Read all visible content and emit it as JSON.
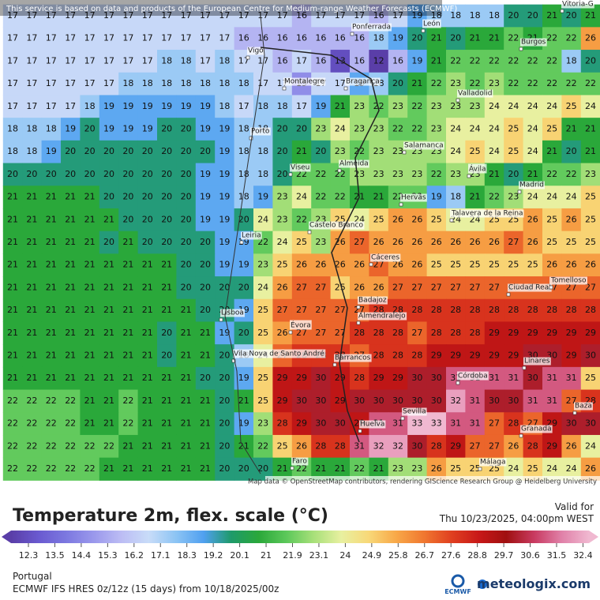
{
  "header": {
    "disclaimer": "This service is based on data and products of the European Centre for Medium-range Weather Forecasts (ECMWF)"
  },
  "map": {
    "rows": [
      [
        17,
        17,
        17,
        17,
        17,
        17,
        17,
        17,
        17,
        17,
        17,
        17,
        17,
        17,
        17,
        16,
        17,
        17,
        17,
        16,
        17,
        19,
        18,
        18,
        18,
        18,
        20,
        20,
        21,
        20,
        21
      ],
      [
        17,
        17,
        17,
        17,
        17,
        17,
        17,
        17,
        17,
        17,
        17,
        17,
        16,
        16,
        16,
        16,
        16,
        16,
        16,
        18,
        19,
        20,
        21,
        20,
        21,
        21,
        22,
        21,
        22,
        22,
        26
      ],
      [
        17,
        17,
        17,
        17,
        17,
        17,
        17,
        17,
        18,
        18,
        17,
        18,
        17,
        17,
        16,
        17,
        16,
        13,
        16,
        12,
        16,
        19,
        21,
        22,
        22,
        22,
        22,
        22,
        22,
        18,
        20
      ],
      [
        17,
        17,
        17,
        17,
        17,
        17,
        18,
        18,
        18,
        18,
        18,
        18,
        18,
        17,
        17,
        15,
        17,
        17,
        19,
        18,
        20,
        21,
        22,
        23,
        22,
        23,
        22,
        22,
        22,
        22,
        22
      ],
      [
        17,
        17,
        17,
        17,
        18,
        19,
        19,
        19,
        19,
        19,
        19,
        18,
        17,
        18,
        18,
        17,
        19,
        21,
        23,
        22,
        23,
        22,
        23,
        23,
        23,
        24,
        24,
        24,
        24,
        25,
        24
      ],
      [
        18,
        18,
        18,
        19,
        20,
        19,
        19,
        19,
        20,
        20,
        19,
        19,
        18,
        18,
        20,
        20,
        23,
        24,
        23,
        23,
        22,
        22,
        23,
        24,
        24,
        24,
        25,
        24,
        25,
        21,
        21
      ],
      [
        18,
        18,
        19,
        20,
        20,
        20,
        20,
        20,
        20,
        20,
        20,
        19,
        18,
        18,
        20,
        21,
        20,
        23,
        22,
        23,
        23,
        23,
        23,
        24,
        25,
        24,
        25,
        24,
        21,
        20,
        21
      ],
      [
        20,
        20,
        20,
        20,
        20,
        20,
        20,
        20,
        20,
        20,
        19,
        19,
        18,
        18,
        20,
        22,
        22,
        22,
        23,
        23,
        23,
        23,
        22,
        23,
        23,
        21,
        20,
        21,
        22,
        22,
        23
      ],
      [
        21,
        21,
        21,
        21,
        21,
        20,
        20,
        20,
        20,
        20,
        19,
        19,
        18,
        19,
        23,
        24,
        22,
        22,
        21,
        21,
        22,
        22,
        19,
        18,
        21,
        22,
        23,
        24,
        24,
        24,
        25
      ],
      [
        21,
        21,
        21,
        21,
        21,
        21,
        20,
        20,
        20,
        20,
        19,
        19,
        20,
        24,
        23,
        22,
        23,
        25,
        24,
        25,
        26,
        26,
        25,
        24,
        24,
        25,
        25,
        26,
        25,
        26,
        25
      ],
      [
        21,
        21,
        21,
        21,
        21,
        20,
        21,
        20,
        20,
        20,
        20,
        19,
        19,
        22,
        24,
        25,
        23,
        26,
        27,
        26,
        26,
        26,
        26,
        26,
        26,
        26,
        27,
        26,
        25,
        25,
        25
      ],
      [
        21,
        21,
        21,
        21,
        21,
        21,
        21,
        21,
        21,
        20,
        20,
        19,
        19,
        23,
        25,
        26,
        26,
        26,
        26,
        27,
        26,
        26,
        25,
        25,
        25,
        25,
        25,
        25,
        26,
        26,
        26
      ],
      [
        21,
        21,
        21,
        21,
        21,
        21,
        21,
        21,
        21,
        20,
        20,
        20,
        20,
        24,
        26,
        27,
        27,
        25,
        26,
        26,
        27,
        27,
        27,
        27,
        27,
        27,
        27,
        27,
        27,
        27,
        27
      ],
      [
        21,
        21,
        21,
        21,
        21,
        21,
        21,
        21,
        21,
        21,
        20,
        20,
        19,
        25,
        27,
        27,
        27,
        27,
        27,
        28,
        28,
        28,
        28,
        28,
        28,
        28,
        28,
        28,
        28,
        28,
        28
      ],
      [
        21,
        21,
        21,
        21,
        21,
        21,
        21,
        21,
        20,
        21,
        21,
        19,
        20,
        25,
        26,
        27,
        27,
        27,
        28,
        28,
        28,
        27,
        28,
        28,
        28,
        29,
        29,
        29,
        29,
        29,
        29
      ],
      [
        21,
        21,
        21,
        21,
        21,
        21,
        21,
        21,
        20,
        21,
        21,
        20,
        18,
        24,
        27,
        28,
        28,
        28,
        27,
        28,
        28,
        28,
        29,
        29,
        29,
        29,
        29,
        30,
        30,
        29,
        30
      ],
      [
        21,
        21,
        21,
        21,
        21,
        21,
        21,
        21,
        21,
        21,
        20,
        20,
        19,
        25,
        29,
        29,
        30,
        29,
        28,
        29,
        29,
        30,
        30,
        31,
        31,
        31,
        31,
        30,
        31,
        31,
        25
      ],
      [
        22,
        22,
        22,
        22,
        21,
        21,
        22,
        21,
        21,
        21,
        21,
        20,
        21,
        25,
        29,
        30,
        30,
        29,
        30,
        30,
        30,
        30,
        30,
        32,
        31,
        30,
        30,
        31,
        31,
        27,
        28
      ],
      [
        22,
        22,
        22,
        22,
        21,
        21,
        22,
        21,
        21,
        21,
        21,
        20,
        19,
        23,
        28,
        29,
        30,
        30,
        29,
        31,
        31,
        33,
        33,
        31,
        31,
        27,
        28,
        27,
        29,
        30,
        30
      ],
      [
        22,
        22,
        22,
        22,
        22,
        22,
        21,
        21,
        21,
        21,
        21,
        20,
        21,
        22,
        25,
        26,
        28,
        28,
        31,
        32,
        32,
        30,
        28,
        29,
        27,
        27,
        26,
        28,
        29,
        26,
        24
      ],
      [
        22,
        22,
        22,
        22,
        22,
        21,
        21,
        21,
        21,
        21,
        21,
        20,
        20,
        20,
        21,
        22,
        21,
        21,
        22,
        21,
        23,
        23,
        26,
        25,
        25,
        25,
        24,
        25,
        24,
        24,
        26
      ]
    ],
    "cities": [
      "Vitoria-G",
      "Ponferrada",
      "León",
      "Burgos",
      "Vigo",
      "Montalegre",
      "Bragança",
      "Valladolid",
      "Porto",
      "Salamanca",
      "Viseu",
      "Almeida",
      "Ávila",
      "Madrid",
      "Hervás",
      "Talavera de la Reina",
      "Castelo Branco",
      "Leiria",
      "Cáceres",
      "Ciudad Real",
      "Tomelloso",
      "Badajoz",
      "Lisboa",
      "Évora",
      "Almendralejo",
      "Vila Nova de Santo André",
      "Barrancos",
      "Córdoba",
      "Linares",
      "Sevilla",
      "Baza",
      "Huelva",
      "Granada",
      "Faro",
      "Málaga"
    ],
    "attribution": "Map data © OpenStreetMap contributors, rendering GIScience Research Group @ Heidelberg University"
  },
  "legend": {
    "title": "Temperature 2m, flex. scale (°C)",
    "valid_label": "Valid for",
    "valid_time": "Thu 10/23/2025, 04:00pm WEST",
    "ticks": [
      12.3,
      13.5,
      14.4,
      15.3,
      16.2,
      17.1,
      18.3,
      19.2,
      20.1,
      21,
      21.9,
      23.1,
      24,
      24.9,
      25.8,
      26.7,
      27.6,
      28.8,
      29.7,
      30.6,
      31.5,
      32.4
    ],
    "colors": [
      "#5a3ea8",
      "#6a5ad0",
      "#7c78e0",
      "#9a98ec",
      "#bcbcf4",
      "#c8dcf8",
      "#8cc4f4",
      "#50a0f0",
      "#1e9a6a",
      "#2aa83a",
      "#5cc85a",
      "#a8e07a",
      "#e8f0a0",
      "#f8d878",
      "#f8a848",
      "#f07830",
      "#e04020",
      "#c81818",
      "#a01010",
      "#c83a60",
      "#e080a8",
      "#f0b8d0"
    ]
  },
  "footer": {
    "region": "Portugal",
    "model": "ECMWF IFS HRES 0z/12z (15 days) from 10/18/2025/00z",
    "logo": "ECMWF",
    "brand": "meteologix.com"
  }
}
